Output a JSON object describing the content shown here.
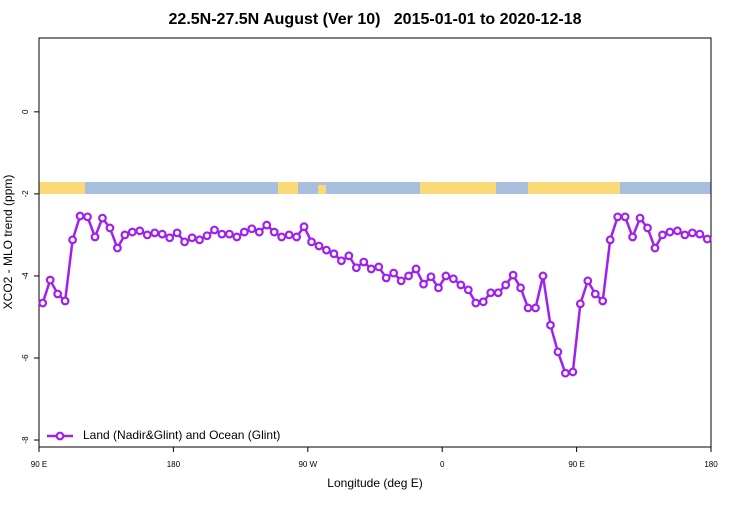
{
  "chart_data": {
    "type": "line",
    "title": "22.5N-27.5N August (Ver 10)   2015-01-01 to 2020-12-18",
    "x_label": "Longitude (deg E)",
    "y_label": "XCO2 - MLO trend (ppm)",
    "x": [
      92.5,
      97.5,
      102.5,
      107.5,
      112.5,
      117.5,
      122.5,
      127.5,
      132.5,
      137.5,
      142.5,
      147.5,
      152.5,
      157.5,
      162.5,
      167.5,
      172.5,
      177.5,
      182.5,
      187.5,
      192.5,
      197.5,
      202.5,
      207.5,
      212.5,
      217.5,
      222.5,
      227.5,
      232.5,
      237.5,
      242.5,
      247.5,
      252.5,
      257.5,
      262.5,
      267.5,
      272.5,
      277.5,
      282.5,
      287.5,
      292.5,
      297.5,
      302.5,
      307.5,
      312.5,
      317.5,
      322.5,
      327.5,
      332.5,
      337.5,
      342.5,
      347.5,
      352.5,
      357.5,
      362.5,
      367.5,
      372.5,
      377.5,
      382.5,
      387.5,
      392.5,
      397.5,
      402.5,
      407.5,
      412.5,
      417.5,
      422.5,
      427.5,
      432.5,
      437.5,
      442.5,
      447.5,
      452.5,
      457.5,
      462.5,
      467.5,
      472.5,
      477.5,
      482.5,
      487.5,
      492.5,
      497.5,
      502.5,
      507.5,
      512.5,
      517.5,
      522.5,
      527.5,
      532.5,
      537.5
    ],
    "series": [
      {
        "name": "Land (Nadir&Glint) and Ocean (Glint)",
        "color": "#a020f0",
        "values": [
          -4.66,
          -4.1,
          -4.44,
          -4.61,
          -3.12,
          -2.54,
          -2.56,
          -3.05,
          -2.59,
          -2.83,
          -3.32,
          -3.0,
          -2.93,
          -2.9,
          -3.0,
          -2.95,
          -2.98,
          -3.07,
          -2.95,
          -3.17,
          -3.07,
          -3.12,
          -3.02,
          -2.88,
          -2.98,
          -2.98,
          -3.05,
          -2.93,
          -2.85,
          -2.93,
          -2.76,
          -2.93,
          -3.05,
          -3.0,
          -3.05,
          -2.8,
          -3.17,
          -3.27,
          -3.37,
          -3.46,
          -3.63,
          -3.51,
          -3.8,
          -3.66,
          -3.83,
          -3.78,
          -4.05,
          -3.93,
          -4.12,
          -4.0,
          -3.83,
          -4.2,
          -4.02,
          -4.29,
          -4.0,
          -4.07,
          -4.22,
          -4.34,
          -4.66,
          -4.63,
          -4.41,
          -4.41,
          -4.22,
          -3.98,
          -4.29,
          -4.78,
          -4.78,
          -4.0,
          -5.2,
          -5.85,
          -6.37,
          -6.34,
          -4.68,
          -4.12,
          -4.44,
          -4.61,
          -3.12,
          -2.56,
          -2.56,
          -3.05,
          -2.59,
          -2.83,
          -3.32,
          -3.0,
          -2.93,
          -2.9,
          -3.0,
          -2.95,
          -2.98,
          -3.1
        ]
      }
    ],
    "xlim": [
      90,
      540
    ],
    "xticks": [
      {
        "value": 90,
        "label": "90 E"
      },
      180,
      {
        "value": 270,
        "label": "90 W"
      },
      {
        "value": 360,
        "label": "0"
      },
      {
        "value": 450,
        "label": "90 E"
      },
      {
        "value": 540,
        "label": "180"
      }
    ],
    "ylim": [
      -8.17,
      1.8
    ],
    "yticks": [
      0,
      -2,
      -4,
      -6,
      -8
    ],
    "legend": "bottom-left"
  }
}
